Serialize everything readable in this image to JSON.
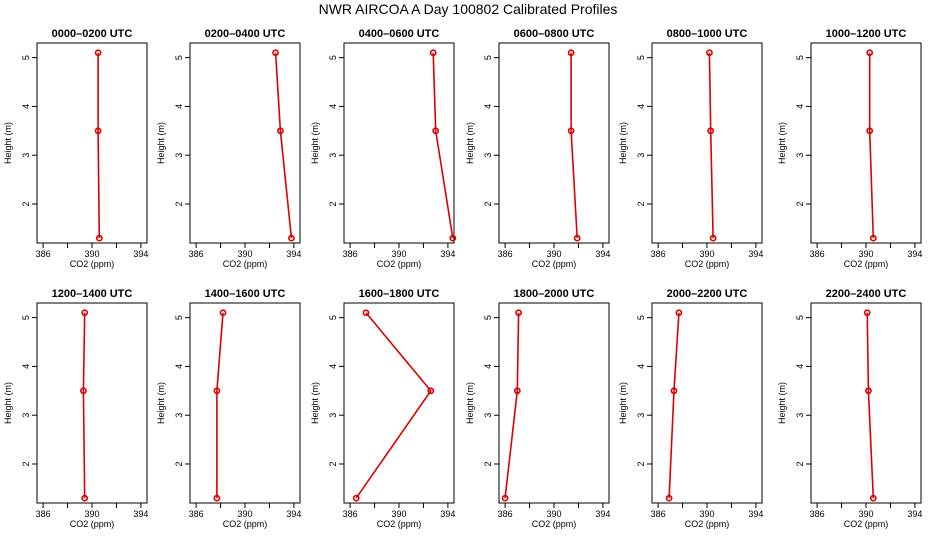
{
  "title": "NWR AIRCOA A  Day 100802  Calibrated Profiles",
  "colors": {
    "series": "#dd0000",
    "axis": "#000000",
    "background": "#ffffff"
  },
  "chart_data": [
    {
      "type": "line",
      "title": "0000–0200 UTC",
      "xlabel": "CO2 (ppm)",
      "ylabel": "Height (m)",
      "xlim": [
        385.5,
        394.5
      ],
      "ylim": [
        1.2,
        5.3
      ],
      "x_ticks": [
        386,
        388,
        390,
        392,
        394
      ],
      "x_tick_labels": [
        "386",
        "390",
        "394"
      ],
      "y_ticks": [
        2,
        3,
        4,
        5
      ],
      "y_tick_labels": [
        "2",
        "3",
        "4",
        "5"
      ],
      "grid": false,
      "points": [
        {
          "x": 390.5,
          "y": 5.1
        },
        {
          "x": 390.5,
          "y": 3.5
        },
        {
          "x": 390.6,
          "y": 1.3
        }
      ]
    },
    {
      "type": "line",
      "title": "0200–0400 UTC",
      "xlabel": "CO2 (ppm)",
      "ylabel": "Height (m)",
      "xlim": [
        385.5,
        394.5
      ],
      "ylim": [
        1.2,
        5.3
      ],
      "x_ticks": [
        386,
        388,
        390,
        392,
        394
      ],
      "x_tick_labels": [
        "386",
        "390",
        "394"
      ],
      "y_ticks": [
        2,
        3,
        4,
        5
      ],
      "y_tick_labels": [
        "2",
        "3",
        "4",
        "5"
      ],
      "grid": false,
      "points": [
        {
          "x": 392.5,
          "y": 5.1
        },
        {
          "x": 392.9,
          "y": 3.5
        },
        {
          "x": 393.8,
          "y": 1.3
        }
      ]
    },
    {
      "type": "line",
      "title": "0400–0600 UTC",
      "xlabel": "CO2 (ppm)",
      "ylabel": "Height (m)",
      "xlim": [
        385.5,
        394.5
      ],
      "ylim": [
        1.2,
        5.3
      ],
      "x_ticks": [
        386,
        388,
        390,
        392,
        394
      ],
      "x_tick_labels": [
        "386",
        "390",
        "394"
      ],
      "y_ticks": [
        2,
        3,
        4,
        5
      ],
      "y_tick_labels": [
        "2",
        "3",
        "4",
        "5"
      ],
      "grid": false,
      "points": [
        {
          "x": 392.8,
          "y": 5.1
        },
        {
          "x": 393.0,
          "y": 3.5
        },
        {
          "x": 394.4,
          "y": 1.3
        }
      ]
    },
    {
      "type": "line",
      "title": "0600–0800 UTC",
      "xlabel": "CO2 (ppm)",
      "ylabel": "Height (m)",
      "xlim": [
        385.5,
        394.5
      ],
      "ylim": [
        1.2,
        5.3
      ],
      "x_ticks": [
        386,
        388,
        390,
        392,
        394
      ],
      "x_tick_labels": [
        "386",
        "390",
        "394"
      ],
      "y_ticks": [
        2,
        3,
        4,
        5
      ],
      "y_tick_labels": [
        "2",
        "3",
        "4",
        "5"
      ],
      "grid": false,
      "points": [
        {
          "x": 391.4,
          "y": 5.1
        },
        {
          "x": 391.4,
          "y": 3.5
        },
        {
          "x": 391.9,
          "y": 1.3
        }
      ]
    },
    {
      "type": "line",
      "title": "0800–1000 UTC",
      "xlabel": "CO2 (ppm)",
      "ylabel": "Height (m)",
      "xlim": [
        385.5,
        394.5
      ],
      "ylim": [
        1.2,
        5.3
      ],
      "x_ticks": [
        386,
        388,
        390,
        392,
        394
      ],
      "x_tick_labels": [
        "386",
        "390",
        "394"
      ],
      "y_ticks": [
        2,
        3,
        4,
        5
      ],
      "y_tick_labels": [
        "2",
        "3",
        "4",
        "5"
      ],
      "grid": false,
      "points": [
        {
          "x": 390.2,
          "y": 5.1
        },
        {
          "x": 390.3,
          "y": 3.5
        },
        {
          "x": 390.5,
          "y": 1.3
        }
      ]
    },
    {
      "type": "line",
      "title": "1000–1200 UTC",
      "xlabel": "CO2 (ppm)",
      "ylabel": "Height (m)",
      "xlim": [
        385.5,
        394.5
      ],
      "ylim": [
        1.2,
        5.3
      ],
      "x_ticks": [
        386,
        388,
        390,
        392,
        394
      ],
      "x_tick_labels": [
        "386",
        "390",
        "394"
      ],
      "y_ticks": [
        2,
        3,
        4,
        5
      ],
      "y_tick_labels": [
        "2",
        "3",
        "4",
        "5"
      ],
      "grid": false,
      "points": [
        {
          "x": 390.3,
          "y": 5.1
        },
        {
          "x": 390.3,
          "y": 3.5
        },
        {
          "x": 390.6,
          "y": 1.3
        }
      ]
    },
    {
      "type": "line",
      "title": "1200–1400 UTC",
      "xlabel": "CO2 (ppm)",
      "ylabel": "Height (m)",
      "xlim": [
        385.5,
        394.5
      ],
      "ylim": [
        1.2,
        5.3
      ],
      "x_ticks": [
        386,
        388,
        390,
        392,
        394
      ],
      "x_tick_labels": [
        "386",
        "390",
        "394"
      ],
      "y_ticks": [
        2,
        3,
        4,
        5
      ],
      "y_tick_labels": [
        "2",
        "3",
        "4",
        "5"
      ],
      "grid": false,
      "points": [
        {
          "x": 389.4,
          "y": 5.1
        },
        {
          "x": 389.3,
          "y": 3.5
        },
        {
          "x": 389.4,
          "y": 1.3
        }
      ]
    },
    {
      "type": "line",
      "title": "1400–1600 UTC",
      "xlabel": "CO2 (ppm)",
      "ylabel": "Height (m)",
      "xlim": [
        385.5,
        394.5
      ],
      "ylim": [
        1.2,
        5.3
      ],
      "x_ticks": [
        386,
        388,
        390,
        392,
        394
      ],
      "x_tick_labels": [
        "386",
        "390",
        "394"
      ],
      "y_ticks": [
        2,
        3,
        4,
        5
      ],
      "y_tick_labels": [
        "2",
        "3",
        "4",
        "5"
      ],
      "grid": false,
      "points": [
        {
          "x": 388.2,
          "y": 5.1
        },
        {
          "x": 387.7,
          "y": 3.5
        },
        {
          "x": 387.7,
          "y": 1.3
        }
      ]
    },
    {
      "type": "line",
      "title": "1600–1800 UTC",
      "xlabel": "CO2 (ppm)",
      "ylabel": "Height (m)",
      "xlim": [
        385.5,
        394.5
      ],
      "ylim": [
        1.2,
        5.3
      ],
      "x_ticks": [
        386,
        388,
        390,
        392,
        394
      ],
      "x_tick_labels": [
        "386",
        "390",
        "394"
      ],
      "y_ticks": [
        2,
        3,
        4,
        5
      ],
      "y_tick_labels": [
        "2",
        "3",
        "4",
        "5"
      ],
      "grid": false,
      "points": [
        {
          "x": 387.3,
          "y": 5.1
        },
        {
          "x": 392.6,
          "y": 3.5
        },
        {
          "x": 386.5,
          "y": 1.3
        }
      ]
    },
    {
      "type": "line",
      "title": "1800–2000 UTC",
      "xlabel": "CO2 (ppm)",
      "ylabel": "Height (m)",
      "xlim": [
        385.5,
        394.5
      ],
      "ylim": [
        1.2,
        5.3
      ],
      "x_ticks": [
        386,
        388,
        390,
        392,
        394
      ],
      "x_tick_labels": [
        "386",
        "390",
        "394"
      ],
      "y_ticks": [
        2,
        3,
        4,
        5
      ],
      "y_tick_labels": [
        "2",
        "3",
        "4",
        "5"
      ],
      "grid": false,
      "points": [
        {
          "x": 387.1,
          "y": 5.1
        },
        {
          "x": 387.0,
          "y": 3.5
        },
        {
          "x": 386.0,
          "y": 1.3
        }
      ]
    },
    {
      "type": "line",
      "title": "2000–2200 UTC",
      "xlabel": "CO2 (ppm)",
      "ylabel": "Height (m)",
      "xlim": [
        385.5,
        394.5
      ],
      "ylim": [
        1.2,
        5.3
      ],
      "x_ticks": [
        386,
        388,
        390,
        392,
        394
      ],
      "x_tick_labels": [
        "386",
        "390",
        "394"
      ],
      "y_ticks": [
        2,
        3,
        4,
        5
      ],
      "y_tick_labels": [
        "2",
        "3",
        "4",
        "5"
      ],
      "grid": false,
      "points": [
        {
          "x": 387.7,
          "y": 5.1
        },
        {
          "x": 387.3,
          "y": 3.5
        },
        {
          "x": 386.9,
          "y": 1.3
        }
      ]
    },
    {
      "type": "line",
      "title": "2200–2400 UTC",
      "xlabel": "CO2 (ppm)",
      "ylabel": "Height (m)",
      "xlim": [
        385.5,
        394.5
      ],
      "ylim": [
        1.2,
        5.3
      ],
      "x_ticks": [
        386,
        388,
        390,
        392,
        394
      ],
      "x_tick_labels": [
        "386",
        "390",
        "394"
      ],
      "y_ticks": [
        2,
        3,
        4,
        5
      ],
      "y_tick_labels": [
        "2",
        "3",
        "4",
        "5"
      ],
      "grid": false,
      "points": [
        {
          "x": 390.1,
          "y": 5.1
        },
        {
          "x": 390.2,
          "y": 3.5
        },
        {
          "x": 390.6,
          "y": 1.3
        }
      ]
    }
  ]
}
